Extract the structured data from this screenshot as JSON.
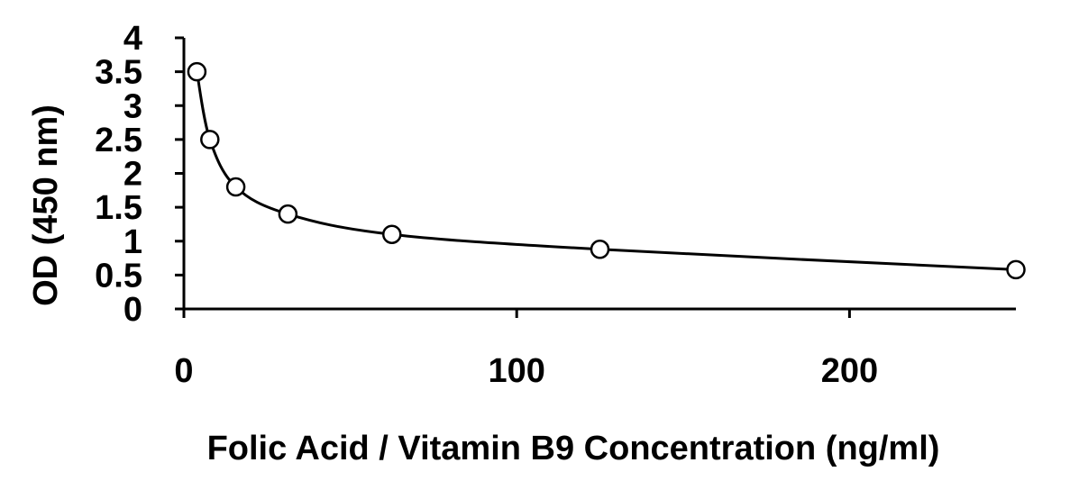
{
  "chart_data": {
    "type": "scatter",
    "title": "",
    "xlabel": "Folic Acid / Vitamin B9 Concentration (ng/ml)",
    "ylabel": "OD (450 nm)",
    "xlim": [
      0,
      250
    ],
    "ylim": [
      0,
      4
    ],
    "x_ticks": [
      0,
      100,
      200
    ],
    "x_tick_labels": [
      "0",
      "100",
      "200"
    ],
    "y_ticks": [
      0,
      0.5,
      1,
      1.5,
      2,
      2.5,
      3,
      3.5,
      4
    ],
    "y_tick_labels": [
      "0",
      "0.5",
      "1",
      "1.5",
      "2",
      "2.5",
      "3",
      "3.5",
      "4"
    ],
    "grid": false,
    "legend": "none",
    "series": [
      {
        "x": [
          3.9,
          7.8,
          15.6,
          31.25,
          62.5,
          125,
          250
        ],
        "y": [
          3.5,
          2.5,
          1.8,
          1.4,
          1.1,
          0.88,
          0.58
        ],
        "marker": "open-circle",
        "line": "smooth-fit"
      }
    ],
    "colors": {
      "line": "#000000",
      "marker_fill": "#ffffff",
      "marker_stroke": "#000000"
    }
  }
}
